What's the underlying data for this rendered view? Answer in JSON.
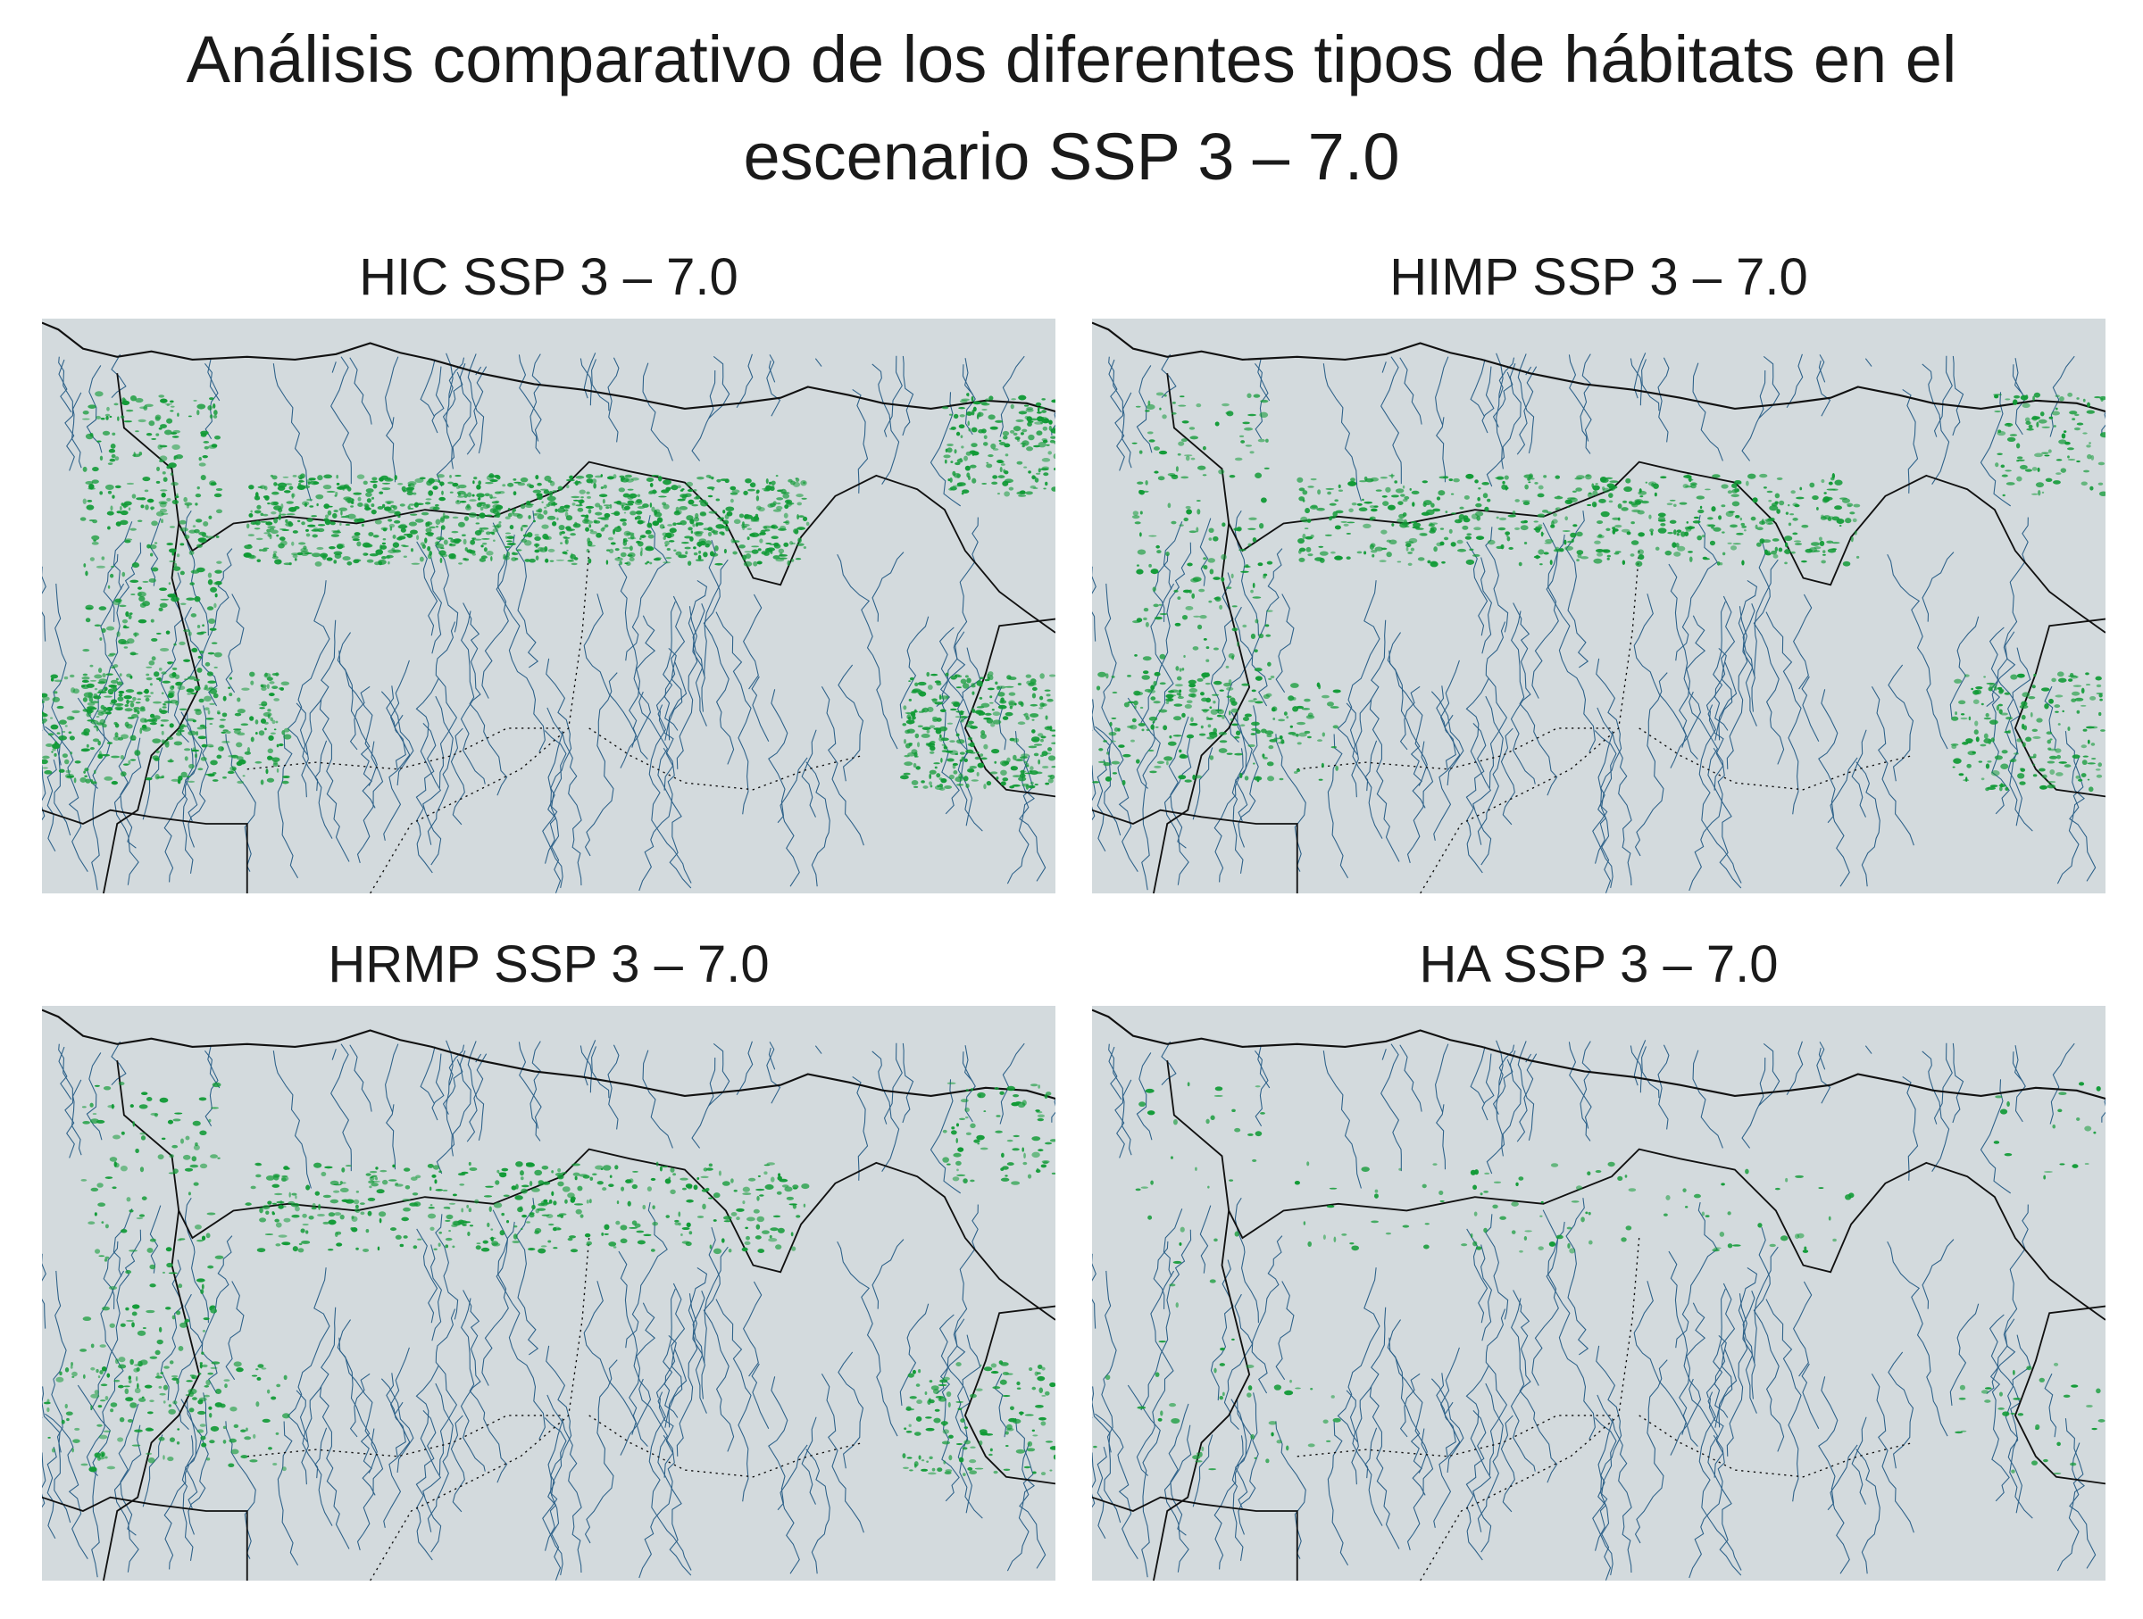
{
  "title": "Análisis comparativo de los diferentes tipos de hábitats en el escenario SSP 3 – 7.0",
  "panels": [
    {
      "title": "HIC SSP 3 – 7.0"
    },
    {
      "title": "HIMP SSP 3 – 7.0"
    },
    {
      "title": "HRMP SSP 3 – 7.0"
    },
    {
      "title": "HA SSP 3 – 7.0"
    }
  ]
}
